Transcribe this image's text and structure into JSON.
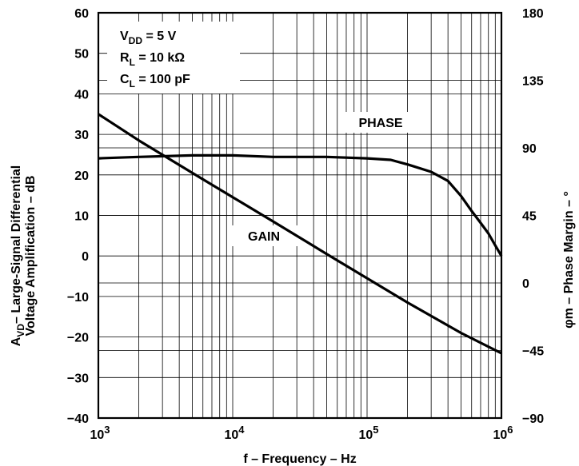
{
  "chart_data": {
    "type": "line",
    "x_scale": "log",
    "xlim": [
      1000,
      1000000
    ],
    "ylim_left": [
      -40,
      60
    ],
    "ylim_right": [
      -90,
      180
    ],
    "grid": true,
    "x_ticks": [
      {
        "base": "10",
        "exp": "3"
      },
      {
        "base": "10",
        "exp": "4"
      },
      {
        "base": "10",
        "exp": "5"
      },
      {
        "base": "10",
        "exp": "6"
      }
    ],
    "y_left_ticks": [
      "60",
      "50",
      "40",
      "30",
      "20",
      "10",
      "0",
      "−10",
      "−20",
      "−30",
      "−40"
    ],
    "y_right_ticks": [
      "180",
      "135",
      "90",
      "45",
      "0",
      "−45",
      "−90"
    ],
    "xlabel": "f – Frequency – Hz",
    "ylabel_left": {
      "line1_prefix": "A",
      "line1_sub": "VD",
      "line1_rest": "– Large-Signal Differential",
      "line2": "Voltage Amplification – dB"
    },
    "ylabel_right": "φm – Phase Margin – °",
    "annotations": [
      {
        "main": "V",
        "sub": "DD",
        "rest": " = 5 V"
      },
      {
        "main": "R",
        "sub": "L",
        "rest": " = 10 kΩ"
      },
      {
        "main": "C",
        "sub": "L",
        "rest": " = 100 pF"
      }
    ],
    "series": [
      {
        "name": "GAIN",
        "axis": "left",
        "x": [
          1000,
          2000,
          5000,
          10000,
          20000,
          50000,
          100000,
          200000,
          500000,
          1000000
        ],
        "values": [
          35,
          28.5,
          20.5,
          14.5,
          8.5,
          0.5,
          -5.5,
          -11.5,
          -19,
          -24
        ]
      },
      {
        "name": "PHASE",
        "axis": "right",
        "x": [
          1000,
          2000,
          5000,
          10000,
          20000,
          50000,
          100000,
          150000,
          200000,
          300000,
          400000,
          500000,
          600000,
          700000,
          800000,
          900000,
          1000000
        ],
        "values": [
          83,
          84,
          85,
          85,
          84,
          84,
          83,
          82,
          79,
          74,
          68,
          58,
          48,
          40,
          33,
          25,
          18
        ]
      }
    ]
  }
}
